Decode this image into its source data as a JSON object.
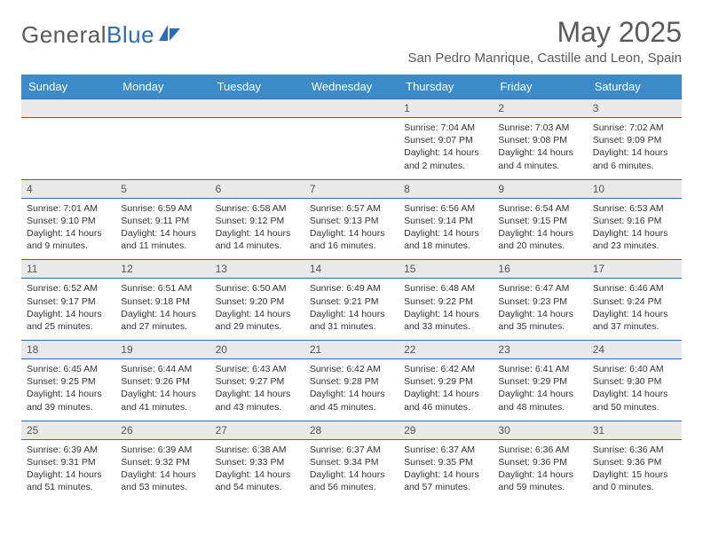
{
  "brand": {
    "word1": "General",
    "word2": "Blue",
    "logo_color": "#2a6db8",
    "text_color": "#5a5a5a"
  },
  "title": "May 2025",
  "location": "San Pedro Manrique, Castille and Leon, Spain",
  "header_bg": "#3b8bc9",
  "header_fg": "#ffffff",
  "daynum_bg": "#e9e9e9",
  "rule_color": "#2a6db8",
  "dows": [
    "Sunday",
    "Monday",
    "Tuesday",
    "Wednesday",
    "Thursday",
    "Friday",
    "Saturday"
  ],
  "weeks": [
    [
      null,
      null,
      null,
      null,
      {
        "n": "1",
        "sr": "Sunrise: 7:04 AM",
        "ss": "Sunset: 9:07 PM",
        "dl1": "Daylight: 14 hours",
        "dl2": "and 2 minutes."
      },
      {
        "n": "2",
        "sr": "Sunrise: 7:03 AM",
        "ss": "Sunset: 9:08 PM",
        "dl1": "Daylight: 14 hours",
        "dl2": "and 4 minutes."
      },
      {
        "n": "3",
        "sr": "Sunrise: 7:02 AM",
        "ss": "Sunset: 9:09 PM",
        "dl1": "Daylight: 14 hours",
        "dl2": "and 6 minutes."
      }
    ],
    [
      {
        "n": "4",
        "sr": "Sunrise: 7:01 AM",
        "ss": "Sunset: 9:10 PM",
        "dl1": "Daylight: 14 hours",
        "dl2": "and 9 minutes."
      },
      {
        "n": "5",
        "sr": "Sunrise: 6:59 AM",
        "ss": "Sunset: 9:11 PM",
        "dl1": "Daylight: 14 hours",
        "dl2": "and 11 minutes."
      },
      {
        "n": "6",
        "sr": "Sunrise: 6:58 AM",
        "ss": "Sunset: 9:12 PM",
        "dl1": "Daylight: 14 hours",
        "dl2": "and 14 minutes."
      },
      {
        "n": "7",
        "sr": "Sunrise: 6:57 AM",
        "ss": "Sunset: 9:13 PM",
        "dl1": "Daylight: 14 hours",
        "dl2": "and 16 minutes."
      },
      {
        "n": "8",
        "sr": "Sunrise: 6:56 AM",
        "ss": "Sunset: 9:14 PM",
        "dl1": "Daylight: 14 hours",
        "dl2": "and 18 minutes."
      },
      {
        "n": "9",
        "sr": "Sunrise: 6:54 AM",
        "ss": "Sunset: 9:15 PM",
        "dl1": "Daylight: 14 hours",
        "dl2": "and 20 minutes."
      },
      {
        "n": "10",
        "sr": "Sunrise: 6:53 AM",
        "ss": "Sunset: 9:16 PM",
        "dl1": "Daylight: 14 hours",
        "dl2": "and 23 minutes."
      }
    ],
    [
      {
        "n": "11",
        "sr": "Sunrise: 6:52 AM",
        "ss": "Sunset: 9:17 PM",
        "dl1": "Daylight: 14 hours",
        "dl2": "and 25 minutes."
      },
      {
        "n": "12",
        "sr": "Sunrise: 6:51 AM",
        "ss": "Sunset: 9:18 PM",
        "dl1": "Daylight: 14 hours",
        "dl2": "and 27 minutes."
      },
      {
        "n": "13",
        "sr": "Sunrise: 6:50 AM",
        "ss": "Sunset: 9:20 PM",
        "dl1": "Daylight: 14 hours",
        "dl2": "and 29 minutes."
      },
      {
        "n": "14",
        "sr": "Sunrise: 6:49 AM",
        "ss": "Sunset: 9:21 PM",
        "dl1": "Daylight: 14 hours",
        "dl2": "and 31 minutes."
      },
      {
        "n": "15",
        "sr": "Sunrise: 6:48 AM",
        "ss": "Sunset: 9:22 PM",
        "dl1": "Daylight: 14 hours",
        "dl2": "and 33 minutes."
      },
      {
        "n": "16",
        "sr": "Sunrise: 6:47 AM",
        "ss": "Sunset: 9:23 PM",
        "dl1": "Daylight: 14 hours",
        "dl2": "and 35 minutes."
      },
      {
        "n": "17",
        "sr": "Sunrise: 6:46 AM",
        "ss": "Sunset: 9:24 PM",
        "dl1": "Daylight: 14 hours",
        "dl2": "and 37 minutes."
      }
    ],
    [
      {
        "n": "18",
        "sr": "Sunrise: 6:45 AM",
        "ss": "Sunset: 9:25 PM",
        "dl1": "Daylight: 14 hours",
        "dl2": "and 39 minutes."
      },
      {
        "n": "19",
        "sr": "Sunrise: 6:44 AM",
        "ss": "Sunset: 9:26 PM",
        "dl1": "Daylight: 14 hours",
        "dl2": "and 41 minutes."
      },
      {
        "n": "20",
        "sr": "Sunrise: 6:43 AM",
        "ss": "Sunset: 9:27 PM",
        "dl1": "Daylight: 14 hours",
        "dl2": "and 43 minutes."
      },
      {
        "n": "21",
        "sr": "Sunrise: 6:42 AM",
        "ss": "Sunset: 9:28 PM",
        "dl1": "Daylight: 14 hours",
        "dl2": "and 45 minutes."
      },
      {
        "n": "22",
        "sr": "Sunrise: 6:42 AM",
        "ss": "Sunset: 9:29 PM",
        "dl1": "Daylight: 14 hours",
        "dl2": "and 46 minutes."
      },
      {
        "n": "23",
        "sr": "Sunrise: 6:41 AM",
        "ss": "Sunset: 9:29 PM",
        "dl1": "Daylight: 14 hours",
        "dl2": "and 48 minutes."
      },
      {
        "n": "24",
        "sr": "Sunrise: 6:40 AM",
        "ss": "Sunset: 9:30 PM",
        "dl1": "Daylight: 14 hours",
        "dl2": "and 50 minutes."
      }
    ],
    [
      {
        "n": "25",
        "sr": "Sunrise: 6:39 AM",
        "ss": "Sunset: 9:31 PM",
        "dl1": "Daylight: 14 hours",
        "dl2": "and 51 minutes."
      },
      {
        "n": "26",
        "sr": "Sunrise: 6:39 AM",
        "ss": "Sunset: 9:32 PM",
        "dl1": "Daylight: 14 hours",
        "dl2": "and 53 minutes."
      },
      {
        "n": "27",
        "sr": "Sunrise: 6:38 AM",
        "ss": "Sunset: 9:33 PM",
        "dl1": "Daylight: 14 hours",
        "dl2": "and 54 minutes."
      },
      {
        "n": "28",
        "sr": "Sunrise: 6:37 AM",
        "ss": "Sunset: 9:34 PM",
        "dl1": "Daylight: 14 hours",
        "dl2": "and 56 minutes."
      },
      {
        "n": "29",
        "sr": "Sunrise: 6:37 AM",
        "ss": "Sunset: 9:35 PM",
        "dl1": "Daylight: 14 hours",
        "dl2": "and 57 minutes."
      },
      {
        "n": "30",
        "sr": "Sunrise: 6:36 AM",
        "ss": "Sunset: 9:36 PM",
        "dl1": "Daylight: 14 hours",
        "dl2": "and 59 minutes."
      },
      {
        "n": "31",
        "sr": "Sunrise: 6:36 AM",
        "ss": "Sunset: 9:36 PM",
        "dl1": "Daylight: 15 hours",
        "dl2": "and 0 minutes."
      }
    ]
  ]
}
